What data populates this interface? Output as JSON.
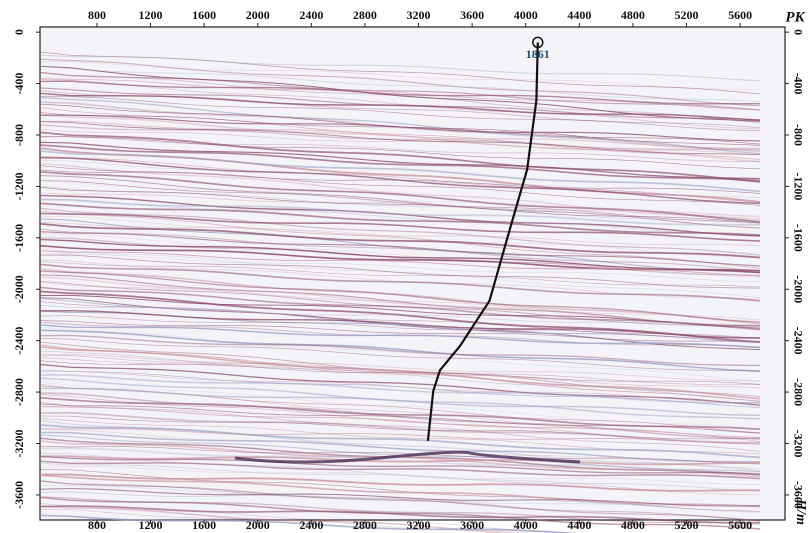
{
  "chart_data": {
    "type": "seismic",
    "x_label": "PK",
    "y_label": "H/m",
    "xlim": [
      375,
      5935
    ],
    "ylim": [
      -3795,
      40
    ],
    "xticks": [
      800,
      1200,
      1600,
      2000,
      2400,
      2800,
      3200,
      3600,
      4000,
      4400,
      4800,
      5200,
      5600
    ],
    "yticks": [
      0,
      -400,
      -800,
      -1200,
      -1600,
      -2000,
      -2400,
      -2800,
      -3200,
      -3600
    ],
    "well": {
      "name": "1861",
      "color": "#111111",
      "x": [
        4090,
        4080,
        4010,
        3880,
        3730,
        3510,
        3360,
        3310,
        3270
      ],
      "values": [
        -80,
        -530,
        -1070,
        -1540,
        -2090,
        -2440,
        -2630,
        -2790,
        -3180
      ]
    }
  }
}
